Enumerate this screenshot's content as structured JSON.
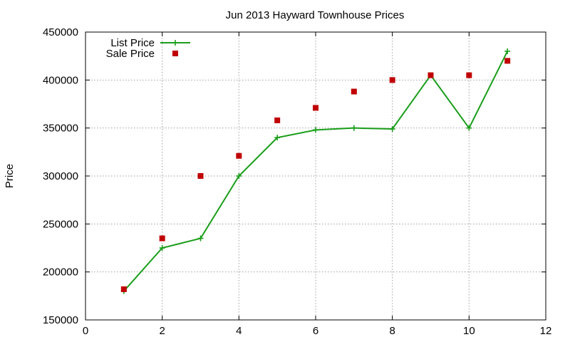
{
  "chart_data": {
    "type": "line",
    "title": "Jun 2013 Hayward Townhouse Prices",
    "xlabel": "",
    "ylabel": "Price",
    "xlim": [
      0,
      12
    ],
    "ylim": [
      150000,
      450000
    ],
    "x_ticks": [
      "0",
      "2",
      "4",
      "6",
      "8",
      "10",
      "12"
    ],
    "y_ticks": [
      "150000",
      "200000",
      "250000",
      "300000",
      "350000",
      "400000",
      "450000"
    ],
    "grid": true,
    "legend_position": "top-left",
    "series": [
      {
        "name": "List Price",
        "style": "line-with-plus-markers",
        "color": "#1a9e1a",
        "x": [
          1,
          2,
          3,
          4,
          5,
          6,
          7,
          8,
          9,
          10,
          11
        ],
        "y": [
          180000,
          225000,
          235000,
          300000,
          340000,
          348000,
          350000,
          349000,
          405000,
          350000,
          430000
        ]
      },
      {
        "name": "Sale Price",
        "style": "square-markers",
        "color": "#c00000",
        "x": [
          1,
          2,
          3,
          4,
          5,
          6,
          7,
          8,
          9,
          10,
          11
        ],
        "y": [
          182000,
          235000,
          300000,
          321000,
          358000,
          371000,
          388000,
          400000,
          405000,
          405000,
          420000
        ]
      }
    ]
  }
}
